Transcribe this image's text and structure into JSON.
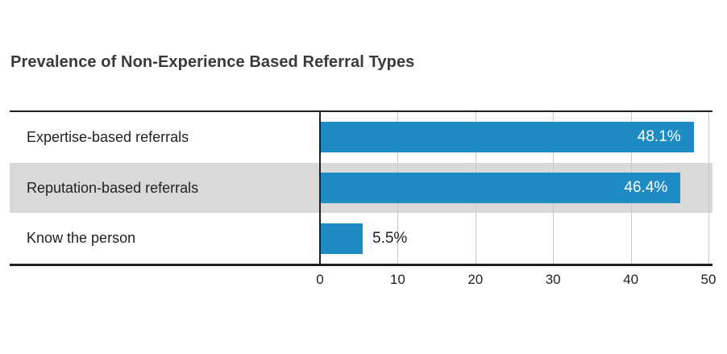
{
  "title": "Prevalence of Non-Experience Based Referral Types",
  "chart_data": {
    "type": "bar",
    "orientation": "horizontal",
    "title": "Prevalence of Non-Experience Based Referral Types",
    "categories": [
      "Expertise-based referrals",
      "Reputation-based referrals",
      "Know the person"
    ],
    "values": [
      48.1,
      46.4,
      5.5
    ],
    "value_labels": [
      "48.1%",
      "46.4%",
      "5.5%"
    ],
    "xlabel": "",
    "ylabel": "",
    "xlim": [
      0,
      50
    ],
    "xticks": [
      "0",
      "10",
      "20",
      "30",
      "40",
      "50"
    ],
    "xtick_values": [
      0,
      10,
      20,
      30,
      40,
      50
    ],
    "grid": true,
    "legend": false,
    "colors": {
      "bar": "#1e8bc3",
      "stripe": "#d9d9d9",
      "gridline": "#c9c9c9",
      "axis": "#1f1f1f",
      "text": "#231f20",
      "value_inside": "#ffffff",
      "title": "#3a3a3a"
    }
  }
}
